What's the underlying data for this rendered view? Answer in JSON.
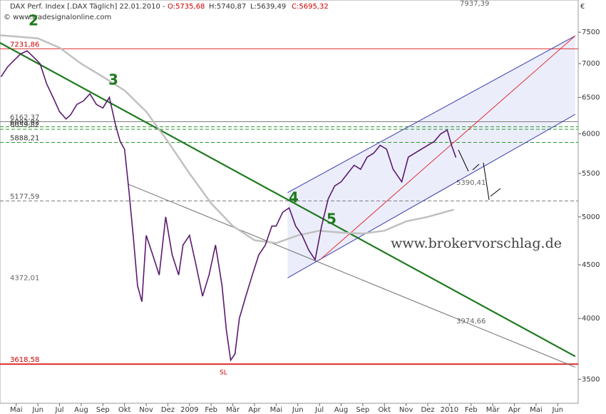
{
  "chart_data": {
    "type": "line",
    "title": "DAX Perf. Index [.DAX  Täglich] 22.01.2010 -",
    "ohlc": [
      "O:5735,68",
      "H:5740,87",
      "L:5639,49",
      "C:5695,32"
    ],
    "copyright": "© www.tradesignalonline.com",
    "currency": "€",
    "watermark": "www.brokervorschlag.de",
    "log_scale": true,
    "ylim": [
      3320,
      8050
    ],
    "yticks": [
      3500,
      4000,
      4500,
      5000,
      5500,
      6000,
      6500,
      7000,
      7500
    ],
    "xlim": [
      -0.75,
      26.9
    ],
    "xticks": [
      {
        "value": 0,
        "label": "Mai"
      },
      {
        "value": 1,
        "label": "Jun"
      },
      {
        "value": 2,
        "label": "Jul"
      },
      {
        "value": 3,
        "label": "Aug"
      },
      {
        "value": 4,
        "label": "Sep"
      },
      {
        "value": 5,
        "label": "Okt"
      },
      {
        "value": 6,
        "label": "Nov"
      },
      {
        "value": 7,
        "label": "Dez"
      },
      {
        "value": 8,
        "label": "2009"
      },
      {
        "value": 9,
        "label": "Feb"
      },
      {
        "value": 10,
        "label": "Mär"
      },
      {
        "value": 11,
        "label": "Apr"
      },
      {
        "value": 12,
        "label": "Mai"
      },
      {
        "value": 13,
        "label": "Jun"
      },
      {
        "value": 14,
        "label": "Jul"
      },
      {
        "value": 15,
        "label": "Aug"
      },
      {
        "value": 16,
        "label": "Sep"
      },
      {
        "value": 17,
        "label": "Okt"
      },
      {
        "value": 18,
        "label": "Nov"
      },
      {
        "value": 19,
        "label": "Dez"
      },
      {
        "value": 20,
        "label": "2010"
      },
      {
        "value": 21,
        "label": "Feb"
      },
      {
        "value": 22,
        "label": "Mär"
      },
      {
        "value": 23,
        "label": "Apr"
      },
      {
        "value": 24,
        "label": "Mai"
      },
      {
        "value": 25,
        "label": "Jun"
      }
    ],
    "series": [
      {
        "color": "#5a1a6e",
        "x": [
          -0.7,
          -0.4,
          -0.1,
          0.2,
          0.5,
          0.8,
          1.1,
          1.4,
          1.7,
          2.0,
          2.3,
          2.5,
          2.8,
          3.1,
          3.4,
          3.7,
          4.0,
          4.3,
          4.6,
          4.8,
          5.0,
          5.2,
          5.4,
          5.6,
          5.8,
          6.0,
          6.3,
          6.6,
          6.9,
          7.2,
          7.5,
          7.7,
          8.0,
          8.3,
          8.6,
          8.9,
          9.2,
          9.5,
          9.7,
          9.9,
          10.1,
          10.3,
          10.6,
          10.9,
          11.2,
          11.5,
          11.8,
          12.0,
          12.3,
          12.6,
          12.9,
          13.2,
          13.5,
          13.8,
          14.1,
          14.4,
          14.7,
          15.0,
          15.3,
          15.6,
          15.9,
          16.2,
          16.5,
          16.8,
          17.1,
          17.4,
          17.8,
          18.1,
          18.4,
          18.7,
          19.0,
          19.3,
          19.6,
          19.9,
          20.1,
          20.3
        ],
        "values": [
          6800,
          6950,
          7050,
          7150,
          7200,
          7100,
          7000,
          6700,
          6500,
          6300,
          6200,
          6250,
          6400,
          6450,
          6550,
          6400,
          6350,
          6500,
          6100,
          5900,
          5800,
          5300,
          4800,
          4300,
          4150,
          4800,
          4600,
          4400,
          5000,
          4600,
          4400,
          4700,
          4800,
          4500,
          4200,
          4400,
          4700,
          4300,
          3900,
          3650,
          3700,
          4000,
          4200,
          4400,
          4600,
          4700,
          4900,
          4900,
          5050,
          5100,
          4900,
          4800,
          4650,
          4550,
          4900,
          5200,
          5350,
          5400,
          5500,
          5600,
          5550,
          5700,
          5750,
          5850,
          5800,
          5550,
          5400,
          5700,
          5750,
          5800,
          5850,
          5900,
          6000,
          6050,
          5850,
          5695.32
        ]
      },
      {
        "color": "#c0c0c0",
        "x": [
          -0.75,
          1,
          2,
          3,
          4,
          5,
          6,
          7,
          8,
          9,
          10,
          11,
          12,
          13,
          14,
          15,
          16,
          17,
          18,
          19,
          20.2
        ],
        "values": [
          7450,
          7400,
          7250,
          7000,
          6800,
          6600,
          6300,
          5900,
          5500,
          5150,
          4900,
          4750,
          4720,
          4800,
          4850,
          4830,
          4820,
          4850,
          4950,
          5000,
          5080
        ]
      }
    ],
    "trendlines": [
      {
        "x": [
          -0.75,
          25.81
        ],
        "values": [
          7328,
          3680
        ],
        "color": "#1e7a1e"
      },
      {
        "x": [
          5.15,
          25.81
        ],
        "values": [
          5374,
          3594
        ],
        "color": "#707070"
      },
      {
        "x": [
          12.53,
          25.81
        ],
        "values": [
          5274,
          7441
        ],
        "color": "#3a3ab0"
      },
      {
        "x": [
          12.53,
          25.81
        ],
        "values": [
          4373,
          6262
        ],
        "color": "#3a3ab0"
      },
      {
        "x": [
          14.0,
          25.81
        ],
        "values": [
          4546,
          7441
        ],
        "color": "#e03030"
      }
    ],
    "levels": [
      {
        "value": 7231.86,
        "label": "7231,86",
        "color": "#e03030"
      },
      {
        "value": 6162.37,
        "label": "6162,37",
        "color": "#808080"
      },
      {
        "value": 6093.82,
        "label": "6093,82",
        "color": "#2a9a2a"
      },
      {
        "value": 6059.82,
        "label": "6059,82",
        "color": "#2a9a2a"
      },
      {
        "value": 5888.21,
        "label": "5888,21",
        "color": "#2a9a2a"
      },
      {
        "value": 5177.59,
        "label": "5177,59",
        "color": "#808080"
      },
      {
        "value": 3618.58,
        "label": "3618,58",
        "color": "#e03030"
      }
    ],
    "value_notes": [
      {
        "value": 4372.01,
        "label": "4372,01"
      },
      {
        "value": 3974.66,
        "label": "3974,66"
      },
      {
        "value": 5390.41,
        "label": "5390,41"
      },
      {
        "value": 7937.39,
        "label": "7937,39"
      }
    ],
    "annotations": [
      "2",
      "3",
      "4",
      "5",
      "SL"
    ]
  }
}
